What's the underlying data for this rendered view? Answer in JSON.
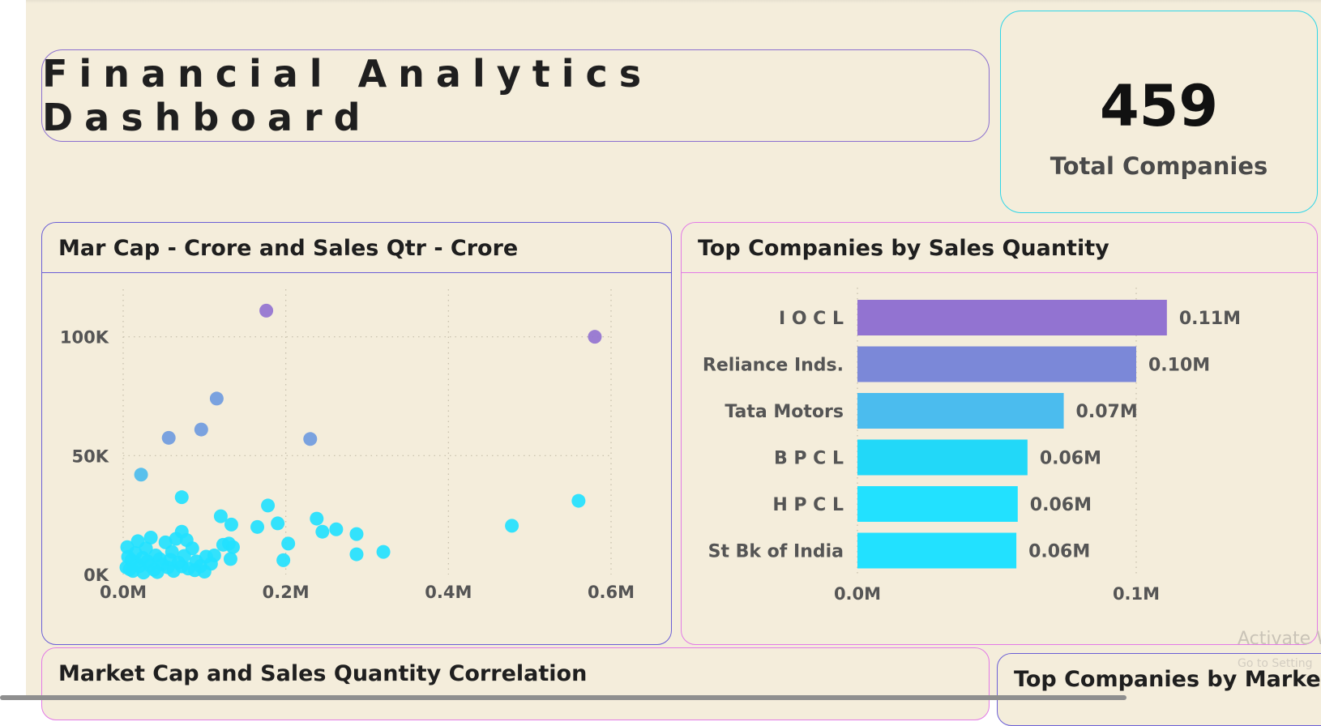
{
  "header": {
    "title": "Financial Analytics Dashboard"
  },
  "kpi": {
    "value": "459",
    "label": "Total Companies"
  },
  "scatter": {
    "title": "Mar Cap - Crore and Sales Qtr - Crore"
  },
  "bars": {
    "title": "Top Companies by Sales Quantity"
  },
  "bottom_left": {
    "title": "Market Cap and Sales Quantity Correlation"
  },
  "bottom_right": {
    "title": "Top Companies by Market Cap"
  },
  "watermark": {
    "line1": "Activate W",
    "line2": "Go to Setting"
  },
  "colors": {
    "background": "#f4eddb",
    "cyan": "#22e1ff",
    "blue": "#4bbcee",
    "indigo": "#7b88d8",
    "purple": "#9273d1"
  },
  "chart_data": [
    {
      "type": "scatter",
      "title": "Mar Cap - Crore and Sales Qtr - Crore",
      "xlim": [
        0,
        600000
      ],
      "ylim": [
        0,
        120000
      ],
      "x_ticks": [
        {
          "value": 0,
          "label": "0.0M"
        },
        {
          "value": 200000,
          "label": "0.2M"
        },
        {
          "value": 400000,
          "label": "0.4M"
        },
        {
          "value": 600000,
          "label": "0.6M"
        }
      ],
      "y_ticks": [
        {
          "value": 0,
          "label": "0K"
        },
        {
          "value": 50000,
          "label": "50K"
        },
        {
          "value": 100000,
          "label": "100K"
        }
      ],
      "grid": true,
      "points": [
        [
          176000,
          111000
        ],
        [
          580000,
          100000
        ],
        [
          115000,
          74000
        ],
        [
          96000,
          61000
        ],
        [
          56000,
          57500
        ],
        [
          230000,
          57000
        ],
        [
          22000,
          42000
        ],
        [
          72000,
          32500
        ],
        [
          560000,
          31000
        ],
        [
          178000,
          29000
        ],
        [
          120000,
          24500
        ],
        [
          238000,
          23500
        ],
        [
          133000,
          21000
        ],
        [
          190000,
          21500
        ],
        [
          165000,
          20000
        ],
        [
          478000,
          20500
        ],
        [
          262000,
          19000
        ],
        [
          245000,
          18000
        ],
        [
          287000,
          17000
        ],
        [
          72000,
          18000
        ],
        [
          34000,
          15500
        ],
        [
          18000,
          14000
        ],
        [
          52000,
          13500
        ],
        [
          65000,
          15000
        ],
        [
          78000,
          14500
        ],
        [
          203000,
          13000
        ],
        [
          130000,
          13000
        ],
        [
          123000,
          12500
        ],
        [
          135000,
          11500
        ],
        [
          85000,
          11000
        ],
        [
          5000,
          11500
        ],
        [
          28000,
          11000
        ],
        [
          320000,
          9500
        ],
        [
          287000,
          8500
        ],
        [
          112000,
          8000
        ],
        [
          102000,
          7500
        ],
        [
          60000,
          9500
        ],
        [
          40000,
          8000
        ],
        [
          132000,
          6500
        ],
        [
          197000,
          6000
        ],
        [
          90000,
          5500
        ],
        [
          15000,
          9000
        ],
        [
          45000,
          6500
        ],
        [
          10000,
          6000
        ],
        [
          30000,
          5500
        ],
        [
          68000,
          5000
        ],
        [
          108000,
          4500
        ],
        [
          4000,
          3000
        ],
        [
          20000,
          3500
        ],
        [
          55000,
          3000
        ],
        [
          80000,
          2500
        ],
        [
          95000,
          3500
        ],
        [
          12000,
          1500
        ],
        [
          38000,
          2000
        ],
        [
          62000,
          1500
        ],
        [
          25000,
          800
        ],
        [
          48000,
          4200
        ],
        [
          8000,
          2200
        ],
        [
          33000,
          3800
        ],
        [
          72000,
          3400
        ],
        [
          16000,
          4700
        ],
        [
          88000,
          1800
        ],
        [
          42000,
          1000
        ],
        [
          58000,
          6200
        ],
        [
          6000,
          7400
        ],
        [
          24000,
          7000
        ],
        [
          100000,
          1200
        ],
        [
          75000,
          7800
        ]
      ]
    },
    {
      "type": "bar",
      "orientation": "horizontal",
      "title": "Top Companies by Sales Quantity",
      "categories": [
        "I O C L",
        "Reliance Inds.",
        "Tata Motors",
        "B P C L",
        "H P C L",
        "St Bk of India"
      ],
      "values": [
        111000,
        100000,
        74000,
        61000,
        57500,
        57000
      ],
      "data_labels": [
        "0.11M",
        "0.10M",
        "0.07M",
        "0.06M",
        "0.06M",
        "0.06M"
      ],
      "bar_colors": [
        "#9273d1",
        "#7b88d8",
        "#4bbcee",
        "#22d8f8",
        "#22e1ff",
        "#22e1ff"
      ],
      "xlim": [
        0,
        100000
      ],
      "x_ticks": [
        {
          "value": 0,
          "label": "0.0M"
        },
        {
          "value": 100000,
          "label": "0.1M"
        }
      ],
      "grid": true
    }
  ]
}
